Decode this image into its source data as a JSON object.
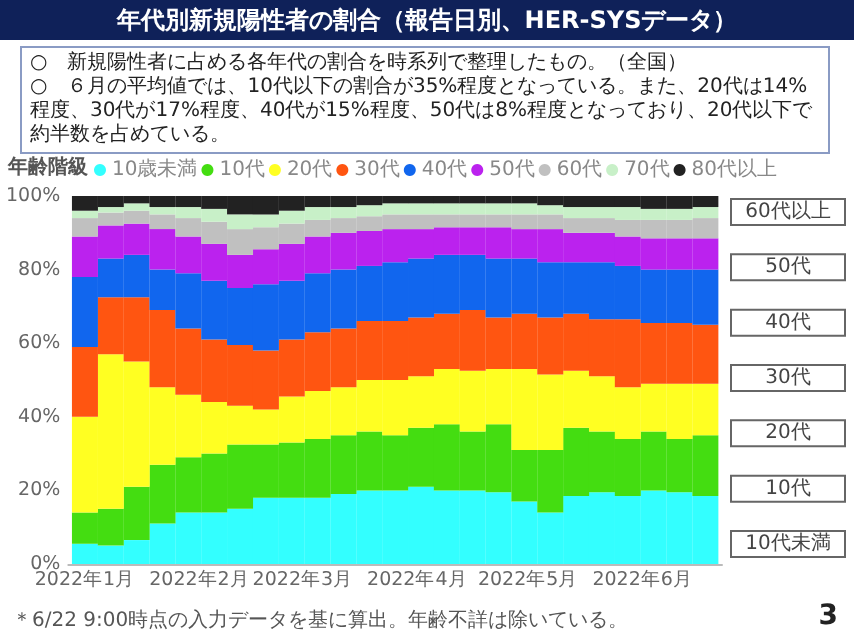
{
  "chart_data": {
    "type": "bar",
    "stacked": true,
    "title": "年代別新規陽性者の割合（報告日別、HER-SYSデータ）",
    "subtitle": "○　新規陽性者に占める各年代の割合を時系列で整理したもの。（全国）\n○　６月の平均値では、10代以下の割合が35%程度となっている。また、20代は14%程度、30代が17%程度、40代が15%程度、50代は8%程度となっており、20代以下で約半数を占めている。",
    "legend_title": "年齢階級",
    "legend": "top",
    "x": [
      "2022-01-01",
      "2022-01-08",
      "2022-01-15",
      "2022-01-22",
      "2022-01-29",
      "2022-02-05",
      "2022-02-12",
      "2022-02-19",
      "2022-02-26",
      "2022-03-05",
      "2022-03-12",
      "2022-03-19",
      "2022-03-26",
      "2022-04-02",
      "2022-04-09",
      "2022-04-16",
      "2022-04-23",
      "2022-04-30",
      "2022-05-07",
      "2022-05-14",
      "2022-05-21",
      "2022-05-28",
      "2022-06-04",
      "2022-06-11",
      "2022-06-18"
    ],
    "xlim": [
      "2021-12-28",
      "2022-06-22"
    ],
    "xticks": [
      {
        "value": "2022-01-01",
        "label": "2022年1月"
      },
      {
        "value": "2022-02-01",
        "label": "2022年2月"
      },
      {
        "value": "2022-03-01",
        "label": "2022年3月"
      },
      {
        "value": "2022-04-01",
        "label": "2022年4月"
      },
      {
        "value": "2022-05-01",
        "label": "2022年5月"
      },
      {
        "value": "2022-06-01",
        "label": "2022年6月"
      }
    ],
    "ylim": [
      0,
      100
    ],
    "yticks": [
      {
        "value": 0,
        "label": "0%"
      },
      {
        "value": 20,
        "label": "20%"
      },
      {
        "value": 40,
        "label": "40%"
      },
      {
        "value": 60,
        "label": "60%"
      },
      {
        "value": 80,
        "label": "80%"
      },
      {
        "value": 100,
        "label": "100%"
      }
    ],
    "series": [
      {
        "name": "10歳未満",
        "color": "#33ffff",
        "values": [
          5.5,
          5,
          6.5,
          11,
          14,
          14,
          15,
          18,
          18,
          18,
          19,
          20,
          20,
          21,
          20,
          20,
          19.5,
          17,
          14,
          18.5,
          19.5,
          18.5,
          20,
          19.5,
          18.5
        ]
      },
      {
        "name": "10代",
        "color": "#44dd11",
        "values": [
          8.5,
          10,
          14.5,
          16,
          15,
          16,
          17.5,
          14.5,
          15,
          16,
          16,
          16,
          15,
          16,
          18,
          16,
          18.5,
          14,
          17,
          18.5,
          16.5,
          15.5,
          16,
          14.5,
          16.5
        ]
      },
      {
        "name": "20代",
        "color": "#ffff22",
        "values": [
          26,
          42,
          34,
          21,
          17,
          14,
          10.5,
          9.5,
          12.5,
          13,
          13,
          14,
          15,
          14,
          15,
          16.5,
          15,
          22,
          20.5,
          15.5,
          15,
          14,
          13,
          15,
          14
        ]
      },
      {
        "name": "30代",
        "color": "#ff5511",
        "values": [
          19,
          15.5,
          17.5,
          21,
          18,
          17,
          16.5,
          16,
          15.5,
          16,
          16,
          16,
          16,
          16,
          15,
          16.5,
          14,
          15,
          15.5,
          15.5,
          15.5,
          18.5,
          16.5,
          16.5,
          16
        ]
      },
      {
        "name": "40代",
        "color": "#1166ee",
        "values": [
          19,
          10.5,
          11.5,
          11,
          15,
          16,
          15.5,
          18,
          16,
          16,
          16,
          15,
          16,
          16,
          16,
          15,
          16,
          15,
          15,
          14,
          15.5,
          14.5,
          14.5,
          14.5,
          15
        ]
      },
      {
        "name": "50代",
        "color": "#bb22ee",
        "values": [
          11,
          9,
          8.5,
          11,
          10,
          10,
          9,
          9.5,
          10,
          10,
          10,
          9.5,
          9,
          8,
          7.5,
          7.5,
          8.5,
          8,
          9,
          8,
          8,
          8,
          8.5,
          8.5,
          8.5
        ]
      },
      {
        "name": "60代",
        "color": "#c0c0c0",
        "values": [
          5,
          3.5,
          3.5,
          4,
          5,
          6,
          7,
          6,
          5.5,
          4.5,
          4,
          4,
          4,
          4,
          3.5,
          3.5,
          3.5,
          4,
          4,
          4,
          4,
          4.5,
          5,
          5,
          5.5
        ]
      },
      {
        "name": "70代",
        "color": "#c8f0c8",
        "values": [
          2,
          1.5,
          2,
          2,
          3,
          3.5,
          4,
          3.5,
          3.5,
          3.5,
          3,
          3,
          3,
          3,
          3,
          3,
          3,
          3,
          2.5,
          3,
          3,
          3.5,
          3,
          3,
          3
        ]
      },
      {
        "name": "80代以上",
        "color": "#222222",
        "values": [
          4,
          3,
          2,
          3,
          3,
          3.5,
          5,
          5,
          4,
          3,
          3,
          2.5,
          2,
          2,
          2,
          2,
          2,
          2,
          2.5,
          3,
          3,
          3,
          3.5,
          3.5,
          3
        ]
      }
    ],
    "annotations": [
      "60代以上",
      "50代",
      "40代",
      "30代",
      "20代",
      "10代",
      "10代未満",
      "＊6/22 9:00時点の入力データを基に算出。年齢不詳は除いている。",
      "3"
    ]
  }
}
